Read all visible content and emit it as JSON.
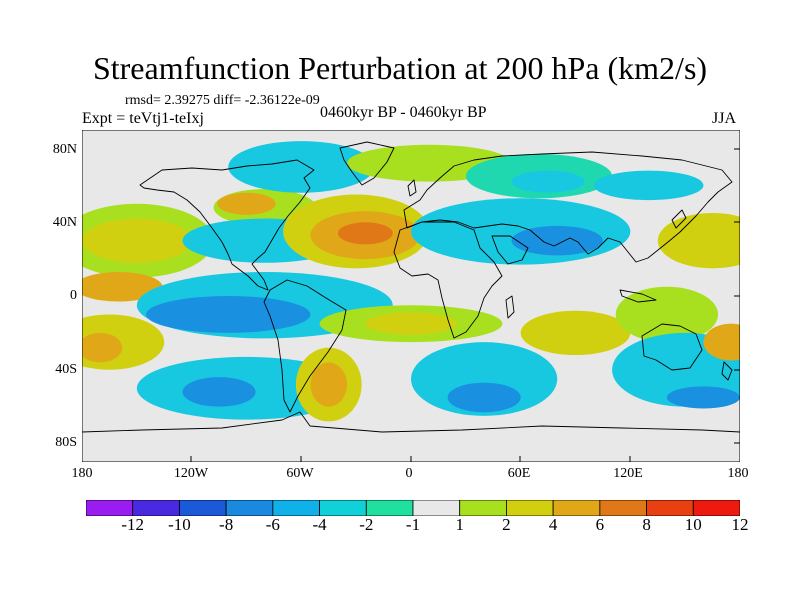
{
  "title": "Streamfunction Perturbation at 200 hPa (km2/s)",
  "stats": "rmsd= 2.39275  diff= -2.36122e-09",
  "experiment": "Expt = teVtj1-teIxj",
  "period": "0460kyr BP - 0460kyr BP",
  "season": "JJA",
  "lat_ticks": [
    "80N",
    "40N",
    "0",
    "40S",
    "80S"
  ],
  "lon_ticks": [
    "180",
    "120W",
    "60W",
    "0",
    "60E",
    "120E",
    "180"
  ],
  "colorbar": {
    "labels": [
      "-12",
      "-10",
      "-8",
      "-6",
      "-4",
      "-2",
      "-1",
      "1",
      "2",
      "4",
      "6",
      "8",
      "10",
      "12"
    ],
    "colors": [
      "#9a1cf0",
      "#4a2ae0",
      "#1a5ad8",
      "#1a8ae0",
      "#10b0e8",
      "#10d0d8",
      "#20e0a0",
      "#e8e8e8",
      "#a8e020",
      "#d0d010",
      "#e0a818",
      "#e07818",
      "#e84010",
      "#ee1a10"
    ]
  },
  "fill_colors": {
    "ocean": "#e8e8e8",
    "cyan": "#18c8e0",
    "teal": "#20d8b0",
    "blue": "#1a90e0",
    "green": "#a8e020",
    "yellow": "#d0d010",
    "orange": "#e0a818",
    "deep_orange": "#e07818"
  },
  "anomalies": [
    {
      "lon": -150,
      "lat": 30,
      "rx": 42,
      "ry": 20,
      "level": "green"
    },
    {
      "lon": -150,
      "lat": 30,
      "rx": 30,
      "ry": 12,
      "level": "yellow"
    },
    {
      "lon": -160,
      "lat": 5,
      "rx": 24,
      "ry": 8,
      "level": "orange"
    },
    {
      "lon": -165,
      "lat": -25,
      "rx": 30,
      "ry": 15,
      "level": "yellow"
    },
    {
      "lon": -170,
      "lat": -28,
      "rx": 12,
      "ry": 8,
      "level": "orange"
    },
    {
      "lon": -80,
      "lat": 48,
      "rx": 28,
      "ry": 10,
      "level": "green"
    },
    {
      "lon": -90,
      "lat": 50,
      "rx": 16,
      "ry": 6,
      "level": "orange"
    },
    {
      "lon": -60,
      "lat": 70,
      "rx": 40,
      "ry": 14,
      "level": "cyan"
    },
    {
      "lon": -80,
      "lat": 30,
      "rx": 45,
      "ry": 12,
      "level": "cyan"
    },
    {
      "lon": -80,
      "lat": -5,
      "rx": 70,
      "ry": 18,
      "level": "cyan"
    },
    {
      "lon": -100,
      "lat": -10,
      "rx": 45,
      "ry": 10,
      "level": "blue"
    },
    {
      "lon": -90,
      "lat": -50,
      "rx": 60,
      "ry": 17,
      "level": "cyan"
    },
    {
      "lon": -105,
      "lat": -52,
      "rx": 20,
      "ry": 8,
      "level": "blue"
    },
    {
      "lon": -30,
      "lat": 35,
      "rx": 40,
      "ry": 20,
      "level": "yellow"
    },
    {
      "lon": -25,
      "lat": 33,
      "rx": 30,
      "ry": 13,
      "level": "orange"
    },
    {
      "lon": -25,
      "lat": 34,
      "rx": 15,
      "ry": 6,
      "level": "deep_orange"
    },
    {
      "lon": 10,
      "lat": 72,
      "rx": 45,
      "ry": 10,
      "level": "green"
    },
    {
      "lon": 70,
      "lat": 65,
      "rx": 40,
      "ry": 12,
      "level": "teal"
    },
    {
      "lon": 75,
      "lat": 62,
      "rx": 20,
      "ry": 6,
      "level": "cyan"
    },
    {
      "lon": 60,
      "lat": 35,
      "rx": 60,
      "ry": 18,
      "level": "cyan"
    },
    {
      "lon": 80,
      "lat": 30,
      "rx": 25,
      "ry": 8,
      "level": "blue"
    },
    {
      "lon": 0,
      "lat": -15,
      "rx": 50,
      "ry": 10,
      "level": "green"
    },
    {
      "lon": 0,
      "lat": -15,
      "rx": 25,
      "ry": 6,
      "level": "yellow"
    },
    {
      "lon": -45,
      "lat": -48,
      "rx": 18,
      "ry": 20,
      "level": "yellow"
    },
    {
      "lon": -45,
      "lat": -48,
      "rx": 10,
      "ry": 12,
      "level": "orange"
    },
    {
      "lon": 40,
      "lat": -45,
      "rx": 40,
      "ry": 20,
      "level": "cyan"
    },
    {
      "lon": 40,
      "lat": -55,
      "rx": 20,
      "ry": 8,
      "level": "blue"
    },
    {
      "lon": 90,
      "lat": -20,
      "rx": 30,
      "ry": 12,
      "level": "yellow"
    },
    {
      "lon": 140,
      "lat": -10,
      "rx": 28,
      "ry": 15,
      "level": "green"
    },
    {
      "lon": 150,
      "lat": -40,
      "rx": 40,
      "ry": 20,
      "level": "cyan"
    },
    {
      "lon": 160,
      "lat": -55,
      "rx": 20,
      "ry": 6,
      "level": "blue"
    },
    {
      "lon": 165,
      "lat": 30,
      "rx": 30,
      "ry": 15,
      "level": "yellow"
    },
    {
      "lon": 175,
      "lat": -25,
      "rx": 15,
      "ry": 10,
      "level": "orange"
    },
    {
      "lon": 130,
      "lat": 60,
      "rx": 30,
      "ry": 8,
      "level": "cyan"
    }
  ]
}
